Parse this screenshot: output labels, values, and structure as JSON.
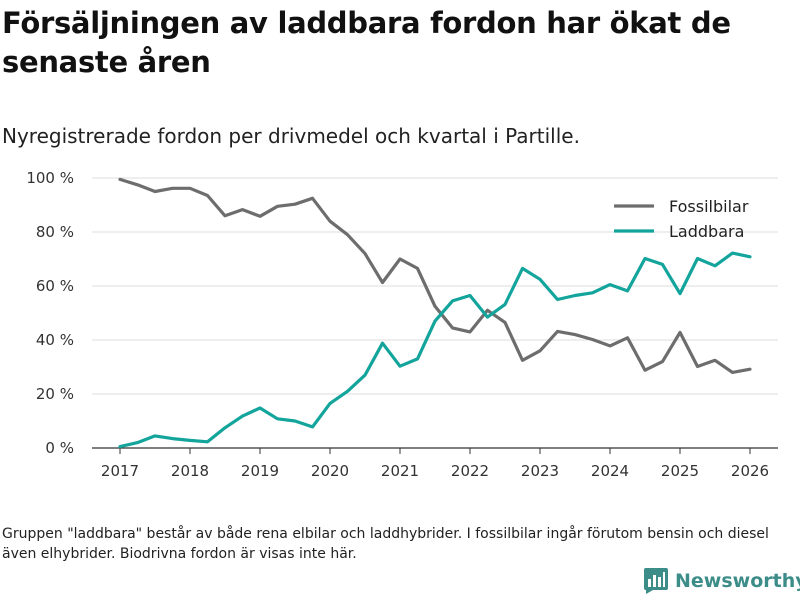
{
  "header": {
    "title": "Försäljningen av laddbara fordon har ökat de senaste åren",
    "subtitle": "Nyregistrerade fordon per drivmedel och kvartal i Partille."
  },
  "footer": {
    "note": "Gruppen \"laddbara\" består av både rena elbilar och laddhybrider. I fossilbilar ingår förutom bensin och diesel även elhybrider. Biodrivna fordon är visas inte här.",
    "brand": "Newsworthy"
  },
  "colors": {
    "fossil": "#6d6d6d",
    "laddbara": "#13a49c",
    "grid": "#dddddd",
    "brand": "#3c8c88"
  },
  "chart_data": {
    "type": "line",
    "title": "Nyregistrerade fordon per drivmedel och kvartal i Partille.",
    "xlabel": "",
    "ylabel": "",
    "xlim": [
      2016.6,
      2026.4
    ],
    "ylim": [
      0,
      100
    ],
    "y_unit": " %",
    "grid": true,
    "legend_position": "top-right",
    "xticks": [
      2017,
      2018,
      2019,
      2020,
      2021,
      2022,
      2023,
      2024,
      2025,
      2026
    ],
    "yticks": [
      0,
      20,
      40,
      60,
      80,
      100
    ],
    "x": [
      2017.0,
      2017.25,
      2017.5,
      2017.75,
      2018.0,
      2018.25,
      2018.5,
      2018.75,
      2019.0,
      2019.25,
      2019.5,
      2019.75,
      2020.0,
      2020.25,
      2020.5,
      2020.75,
      2021.0,
      2021.25,
      2021.5,
      2021.75,
      2022.0,
      2022.25,
      2022.5,
      2022.75,
      2023.0,
      2023.25,
      2023.5,
      2023.75,
      2024.0,
      2024.25,
      2024.5,
      2024.75,
      2025.0,
      2025.25,
      2025.5,
      2025.75,
      2026.0
    ],
    "series": [
      {
        "name": "Fossilbilar",
        "values": [
          99.5,
          97.5,
          95,
          96.2,
          96.2,
          93.5,
          86,
          88.3,
          85.8,
          89.5,
          90.3,
          92.5,
          84,
          79,
          72,
          61.3,
          70,
          66.5,
          52.5,
          44.5,
          43,
          51,
          46.5,
          32.5,
          36,
          43.2,
          42,
          40.2,
          37.8,
          40.8,
          28.8,
          32,
          42.8,
          30.2,
          32.5,
          28,
          29.2
        ]
      },
      {
        "name": "Laddbara",
        "values": [
          0.5,
          2,
          4.5,
          3.5,
          2.8,
          2.3,
          7.5,
          11.8,
          14.8,
          10.8,
          10,
          7.8,
          16.5,
          21,
          27,
          38.8,
          30.3,
          33,
          47,
          54.5,
          56.5,
          48.5,
          53.2,
          66.5,
          62.5,
          55,
          56.5,
          57.5,
          60.5,
          58.2,
          70.2,
          68,
          57.2,
          70.2,
          67.5,
          72.2,
          70.8
        ]
      }
    ]
  }
}
